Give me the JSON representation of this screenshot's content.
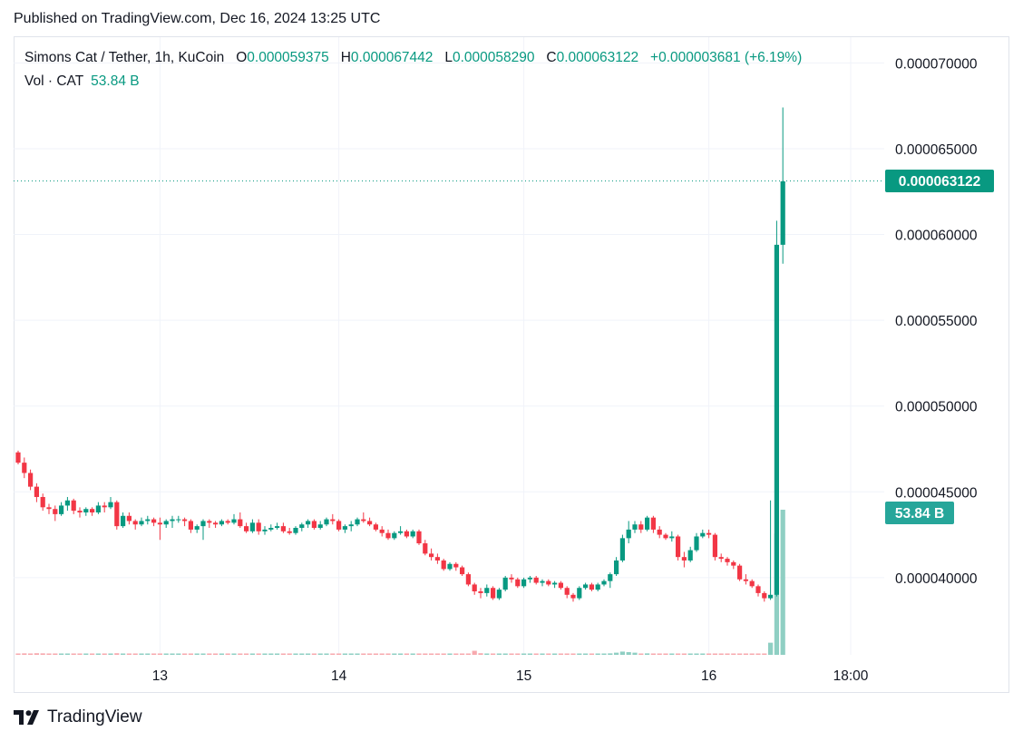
{
  "header": {
    "published": "Published on TradingView.com, Dec 16, 2024 13:25 UTC"
  },
  "legend": {
    "symbol": "Simons Cat / Tether, 1h, KuCoin",
    "o_label": "O",
    "o_value": "0.000059375",
    "h_label": "H",
    "h_value": "0.000067442",
    "l_label": "L",
    "l_value": "0.000058290",
    "c_label": "C",
    "c_value": "0.000063122",
    "change": "+0.000003681 (+6.19%)",
    "vol_label": "Vol · CAT",
    "vol_value": "53.84 B"
  },
  "footer": {
    "brand": "TradingView"
  },
  "colors": {
    "up": "#089981",
    "down": "#f23645",
    "vol_up": "#8fcfc3",
    "vol_down": "#f7a9ae",
    "grid": "#f0f3fa"
  },
  "chart_data": {
    "type": "candlestick",
    "price_axis": {
      "ticks": [
        "0.000070000",
        "0.000065000",
        "0.000060000",
        "0.000055000",
        "0.000050000",
        "0.000045000",
        "0.000040000"
      ],
      "range": [
        3.55e-05,
        7.15e-05
      ]
    },
    "time_axis": {
      "ticks": [
        "13",
        "14",
        "15",
        "16",
        "18:00"
      ]
    },
    "last_price": "0.000063122",
    "last_price_value": 6.3122e-05,
    "last_volume": "53.84 B",
    "candles": [
      [
        4.73e-05,
        4.74e-05,
        4.66e-05,
        4.67e-05,
        0.45
      ],
      [
        4.67e-05,
        4.7e-05,
        4.58e-05,
        4.61e-05,
        0.55
      ],
      [
        4.61e-05,
        4.63e-05,
        4.51e-05,
        4.53e-05,
        0.5
      ],
      [
        4.53e-05,
        4.55e-05,
        4.44e-05,
        4.47e-05,
        0.6
      ],
      [
        4.47e-05,
        4.49e-05,
        4.39e-05,
        4.41e-05,
        0.55
      ],
      [
        4.41e-05,
        4.43e-05,
        4.37e-05,
        4.4e-05,
        0.4
      ],
      [
        4.4e-05,
        4.42e-05,
        4.33e-05,
        4.37e-05,
        0.45
      ],
      [
        4.37e-05,
        4.44e-05,
        4.36e-05,
        4.42e-05,
        0.5
      ],
      [
        4.42e-05,
        4.47e-05,
        4.39e-05,
        4.45e-05,
        0.45
      ],
      [
        4.45e-05,
        4.46e-05,
        4.37e-05,
        4.39e-05,
        0.5
      ],
      [
        4.39e-05,
        4.41e-05,
        4.35e-05,
        4.38e-05,
        0.4
      ],
      [
        4.38e-05,
        4.41e-05,
        4.36e-05,
        4.4e-05,
        0.35
      ],
      [
        4.4e-05,
        4.41e-05,
        4.36e-05,
        4.38e-05,
        0.4
      ],
      [
        4.38e-05,
        4.44e-05,
        4.37e-05,
        4.42e-05,
        0.45
      ],
      [
        4.42e-05,
        4.44e-05,
        4.38e-05,
        4.41e-05,
        0.4
      ],
      [
        4.41e-05,
        4.47e-05,
        4.4e-05,
        4.44e-05,
        0.4
      ],
      [
        4.44e-05,
        4.45e-05,
        4.28e-05,
        4.3e-05,
        0.6
      ],
      [
        4.3e-05,
        4.38e-05,
        4.29e-05,
        4.36e-05,
        0.45
      ],
      [
        4.36e-05,
        4.38e-05,
        4.31e-05,
        4.33e-05,
        0.4
      ],
      [
        4.33e-05,
        4.34e-05,
        4.28e-05,
        4.31e-05,
        0.35
      ],
      [
        4.31e-05,
        4.35e-05,
        4.3e-05,
        4.33e-05,
        0.35
      ],
      [
        4.33e-05,
        4.36e-05,
        4.31e-05,
        4.34e-05,
        0.3
      ],
      [
        4.34e-05,
        4.35e-05,
        4.3e-05,
        4.32e-05,
        0.3
      ],
      [
        4.32e-05,
        4.35e-05,
        4.22e-05,
        4.31e-05,
        0.35
      ],
      [
        4.31e-05,
        4.34e-05,
        4.29e-05,
        4.33e-05,
        0.3
      ],
      [
        4.33e-05,
        4.36e-05,
        4.29e-05,
        4.34e-05,
        0.35
      ],
      [
        4.34e-05,
        4.36e-05,
        4.32e-05,
        4.34e-05,
        0.3
      ],
      [
        4.34e-05,
        4.35e-05,
        4.3e-05,
        4.33e-05,
        0.3
      ],
      [
        4.33e-05,
        4.34e-05,
        4.26e-05,
        4.28e-05,
        0.4
      ],
      [
        4.28e-05,
        4.31e-05,
        4.26e-05,
        4.3e-05,
        0.35
      ],
      [
        4.3e-05,
        4.34e-05,
        4.22e-05,
        4.33e-05,
        0.35
      ],
      [
        4.33e-05,
        4.34e-05,
        4.29e-05,
        4.32e-05,
        0.3
      ],
      [
        4.32e-05,
        4.33e-05,
        4.29e-05,
        4.31e-05,
        0.3
      ],
      [
        4.31e-05,
        4.34e-05,
        4.3e-05,
        4.33e-05,
        0.3
      ],
      [
        4.33e-05,
        4.34e-05,
        4.31e-05,
        4.32e-05,
        0.3
      ],
      [
        4.32e-05,
        4.37e-05,
        4.31e-05,
        4.34e-05,
        0.35
      ],
      [
        4.34e-05,
        4.38e-05,
        4.29e-05,
        4.3e-05,
        0.35
      ],
      [
        4.3e-05,
        4.32e-05,
        4.26e-05,
        4.27e-05,
        0.35
      ],
      [
        4.27e-05,
        4.34e-05,
        4.26e-05,
        4.32e-05,
        0.35
      ],
      [
        4.32e-05,
        4.34e-05,
        4.25e-05,
        4.27e-05,
        0.35
      ],
      [
        4.27e-05,
        4.3e-05,
        4.25e-05,
        4.28e-05,
        0.3
      ],
      [
        4.28e-05,
        4.31e-05,
        4.27e-05,
        4.29e-05,
        0.3
      ],
      [
        4.29e-05,
        4.32e-05,
        4.28e-05,
        4.3e-05,
        0.3
      ],
      [
        4.3e-05,
        4.32e-05,
        4.26e-05,
        4.27e-05,
        0.3
      ],
      [
        4.27e-05,
        4.29e-05,
        4.25e-05,
        4.26e-05,
        0.3
      ],
      [
        4.26e-05,
        4.3e-05,
        4.25e-05,
        4.29e-05,
        0.3
      ],
      [
        4.29e-05,
        4.32e-05,
        4.27e-05,
        4.31e-05,
        0.3
      ],
      [
        4.31e-05,
        4.34e-05,
        4.29e-05,
        4.33e-05,
        0.35
      ],
      [
        4.33e-05,
        4.34e-05,
        4.28e-05,
        4.29e-05,
        0.35
      ],
      [
        4.29e-05,
        4.33e-05,
        4.28e-05,
        4.31e-05,
        0.3
      ],
      [
        4.31e-05,
        4.35e-05,
        4.3e-05,
        4.34e-05,
        0.35
      ],
      [
        4.34e-05,
        4.37e-05,
        4.31e-05,
        4.33e-05,
        0.4
      ],
      [
        4.33e-05,
        4.34e-05,
        4.27e-05,
        4.28e-05,
        0.4
      ],
      [
        4.28e-05,
        4.31e-05,
        4.26e-05,
        4.3e-05,
        0.35
      ],
      [
        4.3e-05,
        4.33e-05,
        4.27e-05,
        4.31e-05,
        0.35
      ],
      [
        4.31e-05,
        4.35e-05,
        4.3e-05,
        4.34e-05,
        0.35
      ],
      [
        4.34e-05,
        4.38e-05,
        4.32e-05,
        4.33e-05,
        0.4
      ],
      [
        4.33e-05,
        4.35e-05,
        4.3e-05,
        4.31e-05,
        0.35
      ],
      [
        4.31e-05,
        4.32e-05,
        4.27e-05,
        4.28e-05,
        0.4
      ],
      [
        4.28e-05,
        4.3e-05,
        4.24e-05,
        4.26e-05,
        0.4
      ],
      [
        4.26e-05,
        4.28e-05,
        4.22e-05,
        4.23e-05,
        0.4
      ],
      [
        4.23e-05,
        4.27e-05,
        4.22e-05,
        4.26e-05,
        0.35
      ],
      [
        4.26e-05,
        4.3e-05,
        4.25e-05,
        4.27e-05,
        0.35
      ],
      [
        4.27e-05,
        4.28e-05,
        4.23e-05,
        4.24e-05,
        0.35
      ],
      [
        4.24e-05,
        4.28e-05,
        4.23e-05,
        4.27e-05,
        0.35
      ],
      [
        4.27e-05,
        4.28e-05,
        4.19e-05,
        4.2e-05,
        0.45
      ],
      [
        4.2e-05,
        4.22e-05,
        4.13e-05,
        4.14e-05,
        0.5
      ],
      [
        4.14e-05,
        4.17e-05,
        4.1e-05,
        4.12e-05,
        0.45
      ],
      [
        4.12e-05,
        4.14e-05,
        4.08e-05,
        4.1e-05,
        0.4
      ],
      [
        4.1e-05,
        4.11e-05,
        4.04e-05,
        4.05e-05,
        0.45
      ],
      [
        4.05e-05,
        4.09e-05,
        4.04e-05,
        4.08e-05,
        0.4
      ],
      [
        4.08e-05,
        4.09e-05,
        4.04e-05,
        4.06e-05,
        0.35
      ],
      [
        4.06e-05,
        4.07e-05,
        4.01e-05,
        4.02e-05,
        0.4
      ],
      [
        4.02e-05,
        4.03e-05,
        3.95e-05,
        3.96e-05,
        0.45
      ],
      [
        3.96e-05,
        3.97e-05,
        3.9e-05,
        3.92e-05,
        1.5
      ],
      [
        3.92e-05,
        3.94e-05,
        3.88e-05,
        3.91e-05,
        0.6
      ],
      [
        3.91e-05,
        3.96e-05,
        3.89e-05,
        3.94e-05,
        0.45
      ],
      [
        3.94e-05,
        3.95e-05,
        3.87e-05,
        3.88e-05,
        0.5
      ],
      [
        3.88e-05,
        3.94e-05,
        3.87e-05,
        3.93e-05,
        0.45
      ],
      [
        3.93e-05,
        4.01e-05,
        3.92e-05,
        4e-05,
        0.4
      ],
      [
        4e-05,
        4.02e-05,
        3.97e-05,
        3.99e-05,
        0.35
      ],
      [
        3.99e-05,
        4e-05,
        3.94e-05,
        3.95e-05,
        0.4
      ],
      [
        3.95e-05,
        4e-05,
        3.94e-05,
        3.99e-05,
        0.35
      ],
      [
        3.99e-05,
        4.01e-05,
        3.97e-05,
        4e-05,
        0.35
      ],
      [
        4e-05,
        4.01e-05,
        3.96e-05,
        3.97e-05,
        0.35
      ],
      [
        3.97e-05,
        3.99e-05,
        3.95e-05,
        3.98e-05,
        0.3
      ],
      [
        3.98e-05,
        3.99e-05,
        3.95e-05,
        3.96e-05,
        0.3
      ],
      [
        3.96e-05,
        3.98e-05,
        3.94e-05,
        3.97e-05,
        0.3
      ],
      [
        3.97e-05,
        3.98e-05,
        3.93e-05,
        3.94e-05,
        0.35
      ],
      [
        3.94e-05,
        3.95e-05,
        3.88e-05,
        3.9e-05,
        0.4
      ],
      [
        3.9e-05,
        3.91e-05,
        3.86e-05,
        3.88e-05,
        0.4
      ],
      [
        3.88e-05,
        3.95e-05,
        3.87e-05,
        3.94e-05,
        0.4
      ],
      [
        3.94e-05,
        3.97e-05,
        3.93e-05,
        3.96e-05,
        0.35
      ],
      [
        3.96e-05,
        3.97e-05,
        3.92e-05,
        3.93e-05,
        0.35
      ],
      [
        3.93e-05,
        3.97e-05,
        3.92e-05,
        3.96e-05,
        0.35
      ],
      [
        3.96e-05,
        3.99e-05,
        3.95e-05,
        3.98e-05,
        0.4
      ],
      [
        3.98e-05,
        4.03e-05,
        3.94e-05,
        4.02e-05,
        0.55
      ],
      [
        4.02e-05,
        4.12e-05,
        4.01e-05,
        4.1e-05,
        0.8
      ],
      [
        4.1e-05,
        4.25e-05,
        4.09e-05,
        4.23e-05,
        1.2
      ],
      [
        4.23e-05,
        4.33e-05,
        4.2e-05,
        4.28e-05,
        1.0
      ],
      [
        4.28e-05,
        4.33e-05,
        4.26e-05,
        4.31e-05,
        0.8
      ],
      [
        4.31e-05,
        4.33e-05,
        4.26e-05,
        4.28e-05,
        0.5
      ],
      [
        4.28e-05,
        4.36e-05,
        4.27e-05,
        4.35e-05,
        0.55
      ],
      [
        4.35e-05,
        4.36e-05,
        4.26e-05,
        4.28e-05,
        0.5
      ],
      [
        4.28e-05,
        4.3e-05,
        4.23e-05,
        4.25e-05,
        0.45
      ],
      [
        4.25e-05,
        4.26e-05,
        4.22e-05,
        4.23e-05,
        0.4
      ],
      [
        4.23e-05,
        4.27e-05,
        4.21e-05,
        4.24e-05,
        0.4
      ],
      [
        4.24e-05,
        4.25e-05,
        4.1e-05,
        4.12e-05,
        0.5
      ],
      [
        4.12e-05,
        4.15e-05,
        4.06e-05,
        4.1e-05,
        0.45
      ],
      [
        4.1e-05,
        4.18e-05,
        4.09e-05,
        4.16e-05,
        0.4
      ],
      [
        4.16e-05,
        4.26e-05,
        4.15e-05,
        4.24e-05,
        0.45
      ],
      [
        4.24e-05,
        4.28e-05,
        4.23e-05,
        4.26e-05,
        0.4
      ],
      [
        4.26e-05,
        4.28e-05,
        4.23e-05,
        4.25e-05,
        0.4
      ],
      [
        4.25e-05,
        4.26e-05,
        4.1e-05,
        4.12e-05,
        0.45
      ],
      [
        4.12e-05,
        4.14e-05,
        4.09e-05,
        4.11e-05,
        0.4
      ],
      [
        4.11e-05,
        4.12e-05,
        4.07e-05,
        4.09e-05,
        0.4
      ],
      [
        4.09e-05,
        4.1e-05,
        4.05e-05,
        4.07e-05,
        0.4
      ],
      [
        4.07e-05,
        4.08e-05,
        3.98e-05,
        3.99e-05,
        0.45
      ],
      [
        3.99e-05,
        4.02e-05,
        3.96e-05,
        3.98e-05,
        0.4
      ],
      [
        3.98e-05,
        3.99e-05,
        3.94e-05,
        3.95e-05,
        0.45
      ],
      [
        3.95e-05,
        3.96e-05,
        3.89e-05,
        3.91e-05,
        0.4
      ],
      [
        3.91e-05,
        3.92e-05,
        3.86e-05,
        3.88e-05,
        0.45
      ],
      [
        3.88e-05,
        4.45e-05,
        3.87e-05,
        3.9e-05,
        4.5
      ],
      [
        3.9e-05,
        6.08e-05,
        3.89e-05,
        5.94e-05,
        45.0
      ],
      [
        5.94e-05,
        6.74e-05,
        5.83e-05,
        6.31e-05,
        53.84
      ]
    ],
    "volume_scale_max": 53.84
  }
}
